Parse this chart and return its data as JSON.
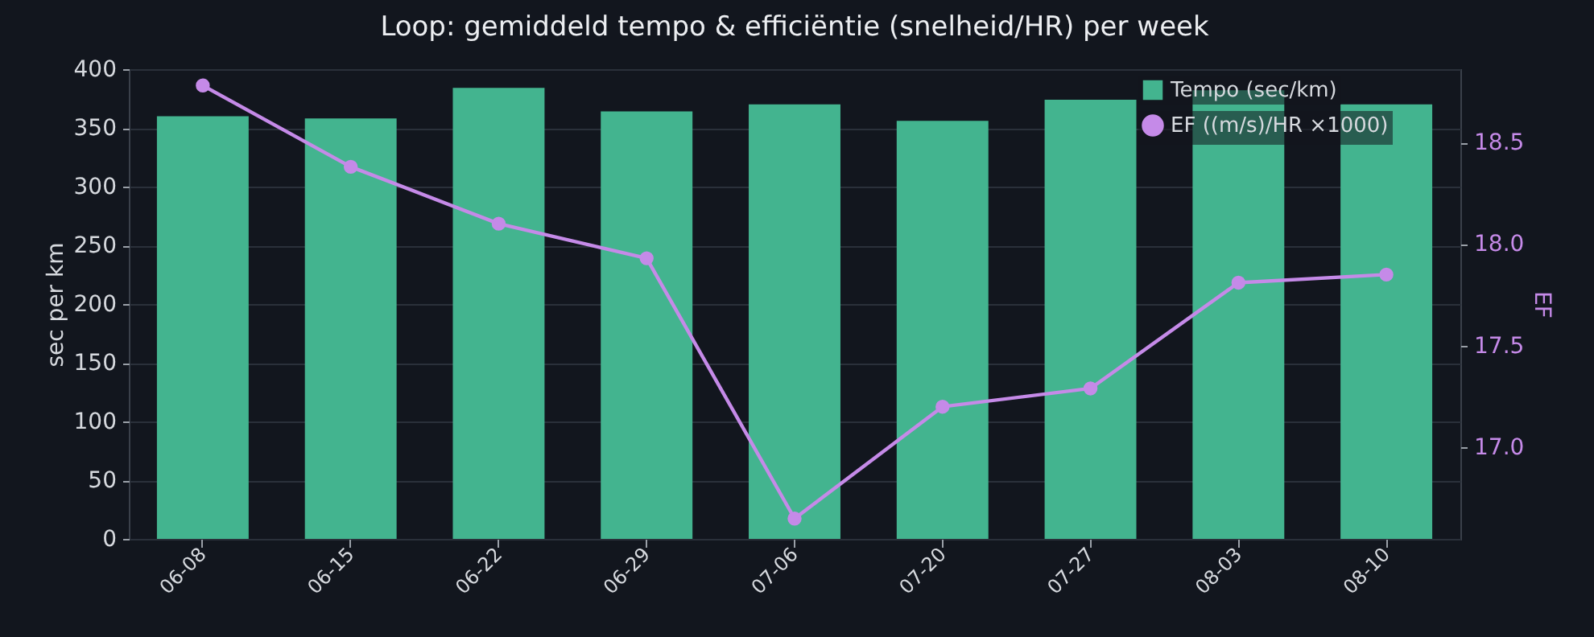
{
  "chart_data": {
    "type": "bar",
    "title": "Loop: gemiddeld tempo & efficiëntie (snelheid/HR) per week",
    "ylabel": "sec per km",
    "y2label": "EF",
    "categories": [
      "06-08",
      "06-15",
      "06-22",
      "06-29",
      "07-06",
      "07-20",
      "07-27",
      "08-03",
      "08-10"
    ],
    "series": [
      {
        "name": "Tempo (sec/km)",
        "color": "#43b48f",
        "values": [
          360,
          358,
          384,
          364,
          370,
          356,
          374,
          382,
          370
        ]
      },
      {
        "name": "EF ((m/s)/HR ×1000)",
        "type": "line",
        "axis": "y2",
        "color": "#c58ae8",
        "values": [
          18.78,
          18.38,
          18.1,
          17.93,
          16.65,
          17.2,
          17.29,
          17.81,
          17.85
        ]
      }
    ],
    "ylim": [
      0,
      400
    ],
    "yticks": [
      0,
      50,
      100,
      150,
      200,
      250,
      300,
      350,
      400
    ],
    "y2lim": [
      16.55,
      18.86
    ],
    "y2ticks": [
      {
        "value": 17,
        "label": "17.0"
      },
      17.5,
      {
        "value": 18,
        "label": "18.0"
      },
      18.5
    ],
    "grid": "y",
    "legend": "top right",
    "marker": "circle"
  }
}
